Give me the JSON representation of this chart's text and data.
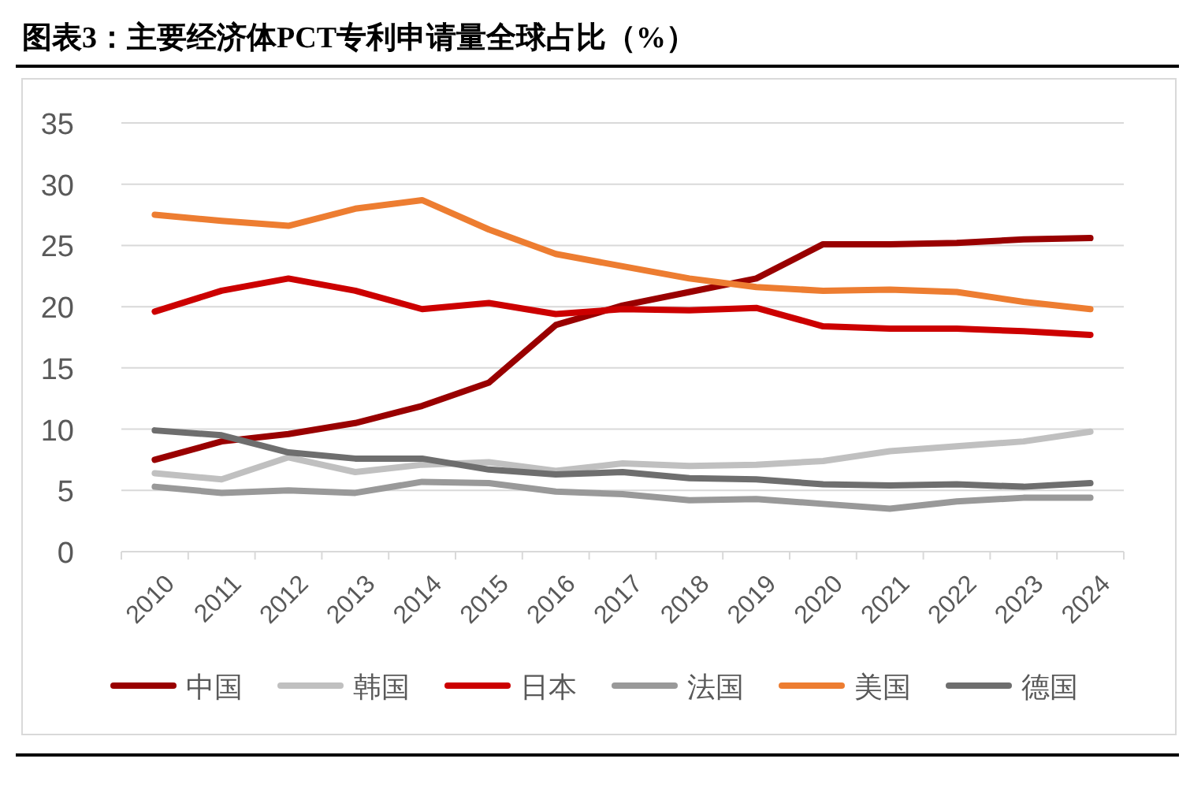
{
  "chart_data": {
    "type": "line",
    "title": "图表3：主要经济体PCT专利申请量全球占比（%）",
    "categories": [
      "2010",
      "2011",
      "2012",
      "2013",
      "2014",
      "2015",
      "2016",
      "2017",
      "2018",
      "2019",
      "2020",
      "2021",
      "2022",
      "2023",
      "2024"
    ],
    "series": [
      {
        "name": "中国",
        "color": "#990000",
        "values": [
          7.5,
          9.0,
          9.6,
          10.5,
          11.9,
          13.8,
          18.5,
          20.1,
          21.2,
          22.3,
          25.1,
          25.1,
          25.2,
          25.5,
          25.6
        ]
      },
      {
        "name": "韩国",
        "color": "#c0c0c0",
        "values": [
          6.4,
          5.9,
          7.7,
          6.5,
          7.1,
          7.3,
          6.6,
          7.2,
          7.0,
          7.1,
          7.4,
          8.2,
          8.6,
          9.0,
          9.8
        ]
      },
      {
        "name": "日本",
        "color": "#cc0000",
        "values": [
          19.6,
          21.3,
          22.3,
          21.3,
          19.8,
          20.3,
          19.4,
          19.8,
          19.7,
          19.9,
          18.4,
          18.2,
          18.2,
          18.0,
          17.7
        ]
      },
      {
        "name": "法国",
        "color": "#999999",
        "values": [
          5.3,
          4.8,
          5.0,
          4.8,
          5.7,
          5.6,
          4.9,
          4.7,
          4.2,
          4.3,
          3.9,
          3.5,
          4.1,
          4.4,
          4.4
        ]
      },
      {
        "name": "美国",
        "color": "#ed7d31",
        "values": [
          27.5,
          27.0,
          26.6,
          28.0,
          28.7,
          26.3,
          24.3,
          23.3,
          22.3,
          21.6,
          21.3,
          21.4,
          21.2,
          20.4,
          19.8
        ]
      },
      {
        "name": "德国",
        "color": "#6e6e6e",
        "values": [
          9.9,
          9.5,
          8.1,
          7.6,
          7.6,
          6.7,
          6.3,
          6.5,
          6.0,
          5.9,
          5.5,
          5.4,
          5.5,
          5.3,
          5.6
        ]
      }
    ],
    "ylim": [
      0,
      35
    ],
    "yticks": [
      0,
      5,
      10,
      15,
      20,
      25,
      30,
      35
    ],
    "grid": "y",
    "legend": "bottom",
    "marker": "none",
    "line_style": "solid"
  }
}
